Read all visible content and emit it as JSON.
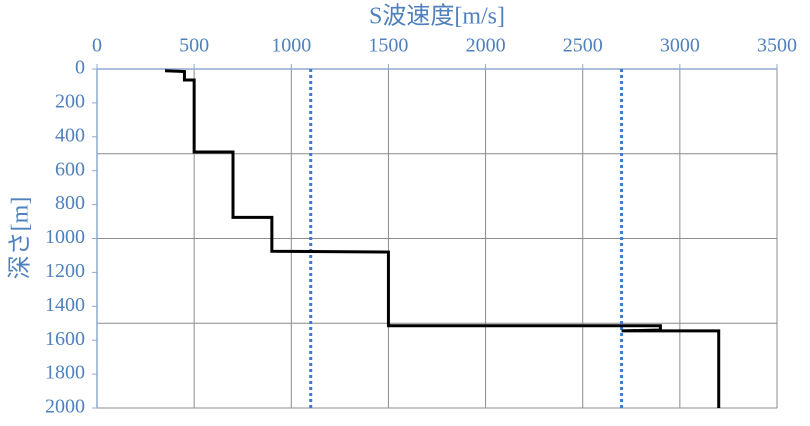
{
  "chart_data": {
    "type": "step-line",
    "x_title": "S波速度[m/s]",
    "y_title": "深さ[m]",
    "xlim": [
      0,
      3500
    ],
    "xticks": [
      0,
      500,
      1000,
      1500,
      2000,
      2500,
      3000,
      3500
    ],
    "ylim": [
      0,
      2000
    ],
    "yticks": [
      0,
      200,
      400,
      600,
      800,
      1000,
      1200,
      1400,
      1600,
      1800,
      2000
    ],
    "y_reversed": true,
    "x_axis_position": "top",
    "ygrid_lines": [
      500,
      1000,
      1500,
      2000
    ],
    "grid": true,
    "series": [
      {
        "color": "#000000",
        "x": [
          350,
          450,
          450,
          500,
          500,
          700,
          700,
          900,
          900,
          1500,
          1500,
          2900,
          2900,
          2700,
          3200,
          3200
        ],
        "values": [
          10,
          15,
          65,
          65,
          490,
          490,
          875,
          875,
          1075,
          1080,
          1515,
          1515,
          1540,
          1545,
          1545,
          2000
        ]
      }
    ],
    "reference_lines": [
      {
        "x": 1100,
        "color": "#3a7bd5"
      },
      {
        "x": 2700,
        "color": "#3a7bd5"
      }
    ]
  }
}
